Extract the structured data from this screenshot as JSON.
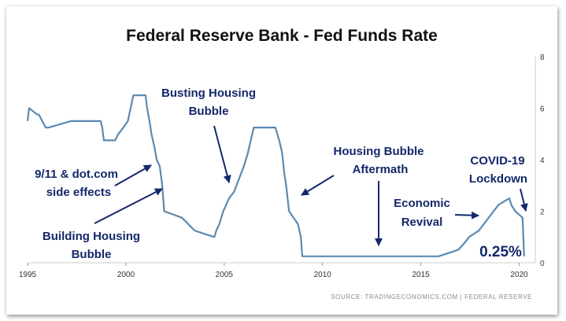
{
  "chart_data": {
    "type": "line",
    "title": "Federal Reserve Bank - Fed Funds Rate",
    "xlabel": "",
    "ylabel": "",
    "xlim": [
      1995,
      2020.5
    ],
    "ylim": [
      0,
      8
    ],
    "x_ticks": [
      1995,
      2000,
      2005,
      2010,
      2015,
      2020
    ],
    "y_ticks": [
      0,
      2,
      4,
      6,
      8
    ],
    "grid": false,
    "line_color": "#5b8ab1",
    "annotation_color": "#14286a",
    "series": [
      {
        "name": "Fed Funds Rate",
        "x": [
          1995.0,
          1995.08,
          1995.5,
          1995.58,
          1995.92,
          1996.08,
          1997.2,
          1998.72,
          1998.8,
          1998.88,
          1999.45,
          1999.62,
          1999.87,
          2000.1,
          2000.38,
          2001.0,
          2001.08,
          2001.2,
          2001.3,
          2001.45,
          2001.57,
          2001.72,
          2001.85,
          2001.95,
          2002.85,
          2003.5,
          2004.5,
          2004.6,
          2004.75,
          2004.85,
          2004.95,
          2005.1,
          2005.25,
          2005.5,
          2005.75,
          2006.0,
          2006.2,
          2006.5,
          2007.6,
          2007.7,
          2007.8,
          2007.95,
          2008.05,
          2008.15,
          2008.3,
          2008.75,
          2008.9,
          2008.97,
          2015.9,
          2016.9,
          2017.2,
          2017.45,
          2017.95,
          2018.2,
          2018.45,
          2018.7,
          2018.95,
          2019.5,
          2019.6,
          2019.8,
          2020.17,
          2020.25
        ],
        "y": [
          5.5,
          6.0,
          5.75,
          5.75,
          5.25,
          5.25,
          5.5,
          5.5,
          5.25,
          4.75,
          4.75,
          5.0,
          5.25,
          5.5,
          6.5,
          6.5,
          6.0,
          5.5,
          5.0,
          4.5,
          4.0,
          3.75,
          3.0,
          2.0,
          1.75,
          1.25,
          1.0,
          1.25,
          1.5,
          1.75,
          2.0,
          2.25,
          2.5,
          2.75,
          3.25,
          3.75,
          4.25,
          5.25,
          5.25,
          5.0,
          4.75,
          4.25,
          3.5,
          3.0,
          2.0,
          1.5,
          1.0,
          0.25,
          0.25,
          0.5,
          0.75,
          1.0,
          1.25,
          1.5,
          1.75,
          2.0,
          2.25,
          2.5,
          2.25,
          2.0,
          1.75,
          0.25
        ]
      }
    ],
    "annotations": [
      {
        "id": "busting",
        "lines": [
          "Busting Housing",
          "Bubble"
        ]
      },
      {
        "id": "nine11",
        "lines": [
          "9/11 & dot.com",
          "side effects"
        ]
      },
      {
        "id": "building",
        "lines": [
          "Building Housing",
          "Bubble"
        ]
      },
      {
        "id": "aftermath",
        "lines": [
          "Housing Bubble",
          "Aftermath"
        ]
      },
      {
        "id": "revival",
        "lines": [
          "Economic",
          "Revival"
        ]
      },
      {
        "id": "covid",
        "lines": [
          "COVID-19",
          "Lockdown"
        ]
      },
      {
        "id": "rate",
        "lines": [
          "0.25%"
        ]
      }
    ],
    "source": "SOURCE: TRADINGECONOMICS.COM | FEDERAL RESERVE"
  }
}
